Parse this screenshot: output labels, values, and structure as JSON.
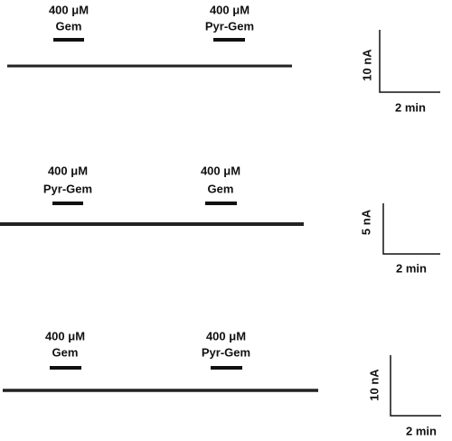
{
  "panels": [
    {
      "applications": [
        {
          "concentration": "400 μM",
          "drug": "Gem"
        },
        {
          "concentration": "400 μM",
          "drug": "Pyr-Gem"
        }
      ],
      "scale_bar": {
        "vertical": "10 nA",
        "horizontal": "2 min"
      }
    },
    {
      "applications": [
        {
          "concentration": "400 μM",
          "drug": "Pyr-Gem"
        },
        {
          "concentration": "400 μM",
          "drug": "Gem"
        }
      ],
      "scale_bar": {
        "vertical": "5 nA",
        "horizontal": "2 min"
      }
    },
    {
      "applications": [
        {
          "concentration": "400 μM",
          "drug": "Gem"
        },
        {
          "concentration": "400 μM",
          "drug": "Pyr-Gem"
        }
      ],
      "scale_bar": {
        "vertical": "10 nA",
        "horizontal": "2 min"
      }
    }
  ]
}
